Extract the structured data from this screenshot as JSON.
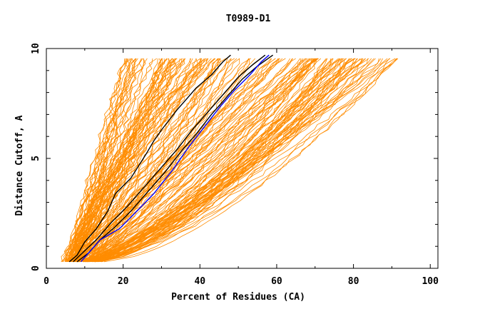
{
  "chart_data": {
    "type": "line",
    "title": "T0989-D1",
    "xlabel": "Percent of Residues (CA)",
    "ylabel": "Distance Cutoff, A",
    "xlim": [
      0,
      102
    ],
    "ylim": [
      0,
      10
    ],
    "x_ticks": [
      0,
      20,
      40,
      60,
      80,
      100
    ],
    "y_ticks": [
      0,
      5,
      10
    ],
    "grid": false,
    "colors": {
      "models": "#ff8c00",
      "highlight": "#000000",
      "selected": "#0000ff"
    },
    "highlighted_series": [
      {
        "name": "",
        "color": "#000000",
        "points": [
          [
            6,
            0.3
          ],
          [
            8,
            0.6
          ],
          [
            10,
            1.2
          ],
          [
            13,
            1.8
          ],
          [
            16,
            2.6
          ],
          [
            18,
            3.4
          ],
          [
            22,
            4.1
          ],
          [
            26,
            5.2
          ],
          [
            28,
            5.8
          ],
          [
            30,
            6.3
          ],
          [
            34,
            7.2
          ],
          [
            36,
            7.6
          ],
          [
            39,
            8.2
          ],
          [
            43,
            8.8
          ],
          [
            46,
            9.4
          ],
          [
            48,
            9.7
          ]
        ]
      },
      {
        "name": "",
        "color": "#000000",
        "points": [
          [
            7,
            0.3
          ],
          [
            10,
            0.8
          ],
          [
            13,
            1.3
          ],
          [
            17,
            2.1
          ],
          [
            21,
            2.8
          ],
          [
            25,
            3.6
          ],
          [
            30,
            4.6
          ],
          [
            34,
            5.4
          ],
          [
            38,
            6.3
          ],
          [
            42,
            7.1
          ],
          [
            46,
            7.9
          ],
          [
            50,
            8.7
          ],
          [
            54,
            9.3
          ],
          [
            57,
            9.7
          ]
        ]
      },
      {
        "name": "",
        "color": "#000000",
        "points": [
          [
            8,
            0.3
          ],
          [
            11,
            0.7
          ],
          [
            14,
            1.3
          ],
          [
            18,
            1.9
          ],
          [
            22,
            2.6
          ],
          [
            26,
            3.4
          ],
          [
            31,
            4.4
          ],
          [
            35,
            5.3
          ],
          [
            39,
            6.1
          ],
          [
            43,
            7.0
          ],
          [
            47,
            7.8
          ],
          [
            51,
            8.6
          ],
          [
            55,
            9.2
          ],
          [
            59,
            9.7
          ]
        ]
      },
      {
        "name": "",
        "color": "#0000ff",
        "points": [
          [
            9,
            0.3
          ],
          [
            12,
            0.9
          ],
          [
            14,
            1.3
          ],
          [
            19,
            1.8
          ],
          [
            23,
            2.5
          ],
          [
            28,
            3.4
          ],
          [
            33,
            4.5
          ],
          [
            37,
            5.5
          ],
          [
            41,
            6.4
          ],
          [
            45,
            7.3
          ],
          [
            49,
            8.1
          ],
          [
            53,
            8.8
          ],
          [
            56,
            9.4
          ],
          [
            58,
            9.7
          ]
        ]
      }
    ]
  }
}
